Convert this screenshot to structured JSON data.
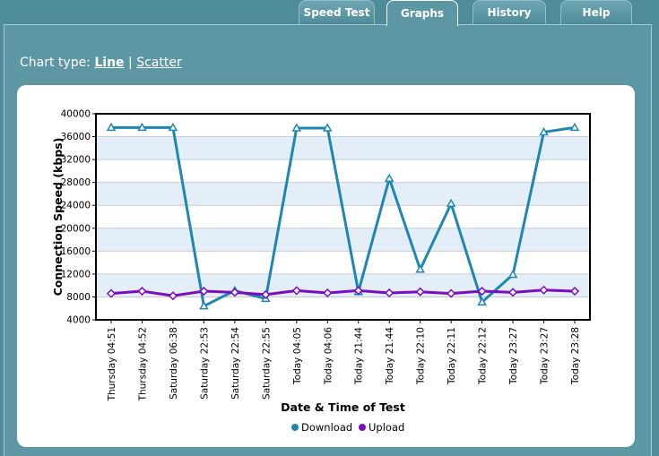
{
  "tabs": [
    {
      "label": "Speed Test",
      "active": false
    },
    {
      "label": "Graphs",
      "active": true
    },
    {
      "label": "History",
      "active": false
    },
    {
      "label": "Help",
      "active": false
    }
  ],
  "chart_type": {
    "prefix": "Chart type:",
    "separator": "|",
    "options": [
      {
        "label": "Line",
        "active": true
      },
      {
        "label": "Scatter",
        "active": false
      }
    ]
  },
  "colors": {
    "background": "#4f8c99",
    "download": "#1f86b4",
    "upload": "#7b0dbf",
    "band": "#e3eef9"
  },
  "chart_data": {
    "type": "line",
    "xlabel": "Date & Time of Test",
    "ylabel": "Connection Speed (kbps)",
    "ylim": [
      4000,
      40000
    ],
    "yticks": [
      4000,
      8000,
      12000,
      16000,
      20000,
      24000,
      28000,
      32000,
      36000,
      40000
    ],
    "grid": "alternating horizontal bands",
    "legend_position": "bottom-center",
    "categories": [
      "Thursday 04:51",
      "Thursday 04:52",
      "Saturday 06:38",
      "Saturday 22:53",
      "Saturday 22:54",
      "Saturday 22:55",
      "Today 04:05",
      "Today 04:06",
      "Today 21:44",
      "Today 21:44",
      "Today 22:10",
      "Today 22:11",
      "Today 22:12",
      "Today 23:27",
      "Today 23:27",
      "Today 23:28"
    ],
    "series": [
      {
        "name": "Download",
        "marker": "triangle",
        "values": [
          37600,
          37600,
          37600,
          6400,
          9100,
          7700,
          37500,
          37500,
          8900,
          28700,
          12800,
          24300,
          7100,
          11900,
          36800,
          37600
        ]
      },
      {
        "name": "Upload",
        "marker": "diamond",
        "values": [
          8600,
          9000,
          8200,
          9000,
          8800,
          8400,
          9100,
          8700,
          9100,
          8700,
          8900,
          8600,
          9000,
          8800,
          9200,
          9000
        ]
      }
    ]
  }
}
